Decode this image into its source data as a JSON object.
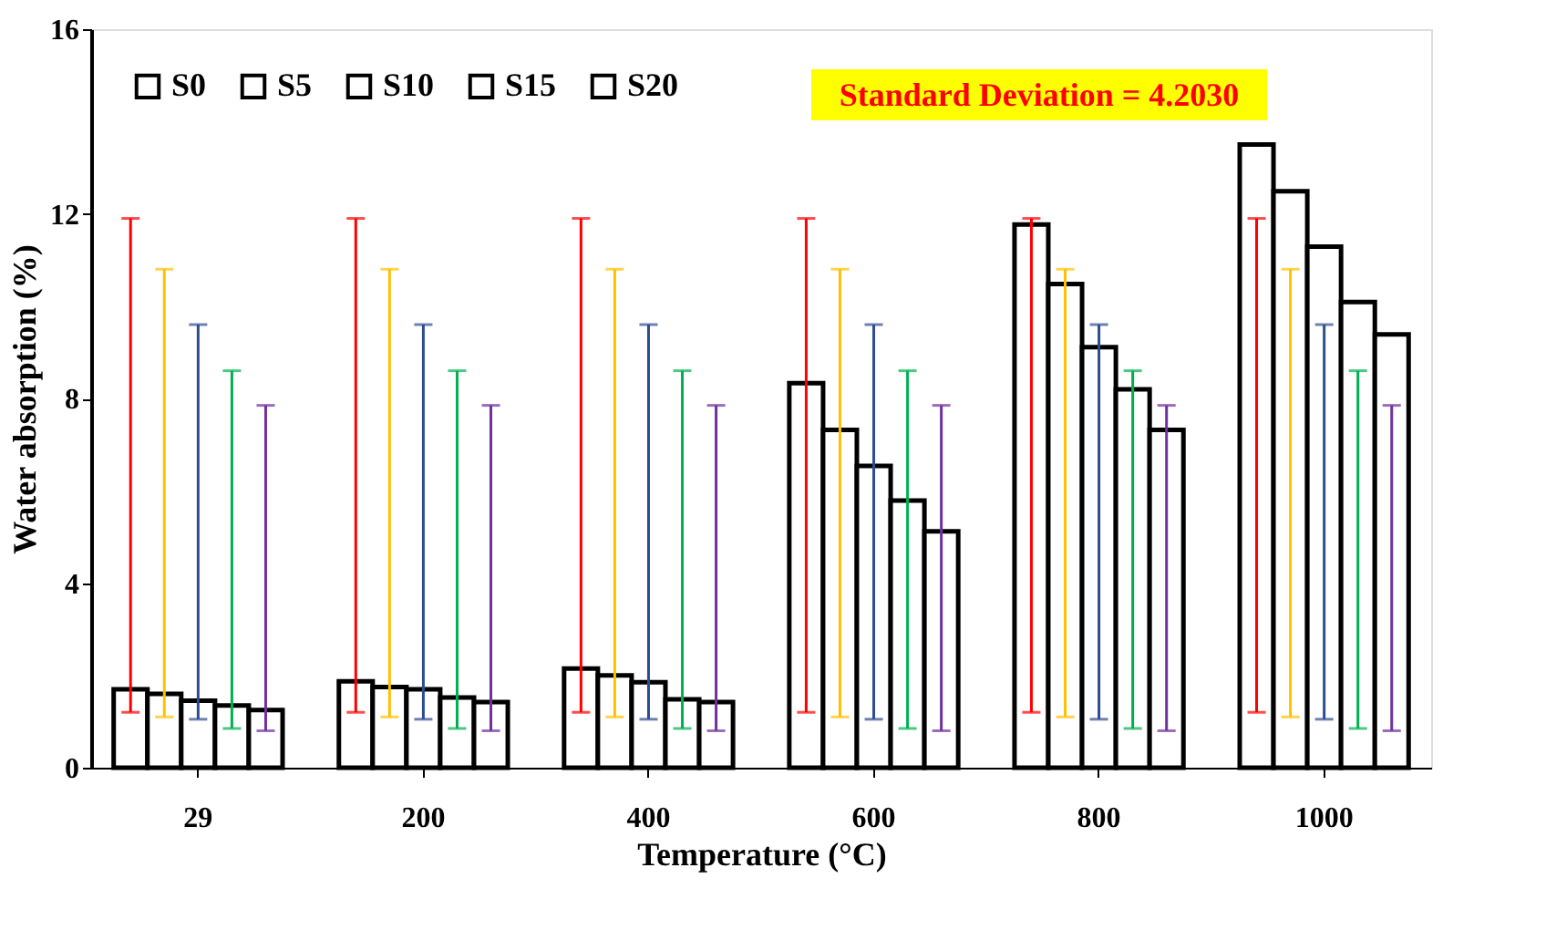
{
  "chart_data": {
    "type": "bar",
    "xlabel": "Temperature (°C)",
    "ylabel": "Water absorption (%)",
    "categories": [
      "29",
      "200",
      "400",
      "600",
      "800",
      "1000"
    ],
    "series": [
      {
        "name": "S0",
        "color": "#ffffff",
        "values": [
          1.7,
          1.87,
          2.15,
          8.33,
          11.77,
          13.5
        ],
        "errors": [
          [
            1.2,
            11.9
          ],
          [
            1.2,
            11.9
          ],
          [
            1.2,
            11.9
          ],
          [
            1.2,
            11.9
          ],
          [
            1.2,
            11.9
          ],
          [
            1.2,
            11.9
          ]
        ]
      },
      {
        "name": "S5",
        "color": "#ffffff",
        "values": [
          1.6,
          1.75,
          2.0,
          7.32,
          10.48,
          12.49
        ],
        "errors": [
          [
            1.1,
            10.8
          ],
          [
            1.1,
            10.8
          ],
          [
            1.1,
            10.8
          ],
          [
            1.1,
            10.8
          ],
          [
            1.1,
            10.8
          ],
          [
            1.1,
            10.8
          ]
        ]
      },
      {
        "name": "S10",
        "color": "#ffffff",
        "values": [
          1.45,
          1.7,
          1.85,
          6.54,
          9.11,
          11.29
        ],
        "errors": [
          [
            1.05,
            9.6
          ],
          [
            1.05,
            9.6
          ],
          [
            1.05,
            9.6
          ],
          [
            1.05,
            9.6
          ],
          [
            1.05,
            9.6
          ],
          [
            1.05,
            9.6
          ]
        ]
      },
      {
        "name": "S15",
        "color": "#ffffff",
        "values": [
          1.35,
          1.52,
          1.48,
          5.79,
          8.2,
          10.09
        ],
        "errors": [
          [
            0.85,
            8.6
          ],
          [
            0.85,
            8.6
          ],
          [
            0.85,
            8.6
          ],
          [
            0.85,
            8.6
          ],
          [
            0.85,
            8.6
          ],
          [
            0.85,
            8.6
          ]
        ]
      },
      {
        "name": "S20",
        "color": "#ffffff",
        "values": [
          1.25,
          1.42,
          1.42,
          5.12,
          7.32,
          9.39
        ],
        "errors": [
          [
            0.8,
            7.85
          ],
          [
            0.8,
            7.85
          ],
          [
            0.8,
            7.85
          ],
          [
            0.8,
            7.85
          ],
          [
            0.8,
            7.85
          ],
          [
            0.8,
            7.85
          ]
        ]
      }
    ],
    "ylim": [
      0,
      16
    ],
    "yticks": [
      0,
      4,
      8,
      12,
      16
    ],
    "grid": false,
    "legend": "top left",
    "annotations": [
      "Standard Deviation = 4.2030"
    ]
  }
}
